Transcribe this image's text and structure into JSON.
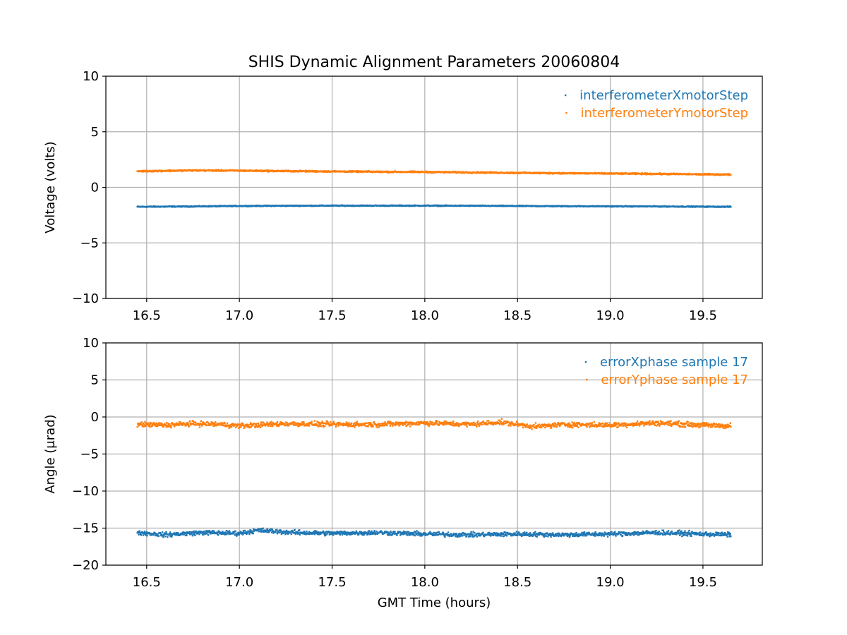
{
  "figure": {
    "title": "SHIS Dynamic Alignment Parameters 20060804"
  },
  "colors": {
    "series1": "#1f77b4",
    "series2": "#ff7f0e",
    "grid": "#b0b0b0"
  },
  "chart_data": [
    {
      "type": "scatter",
      "title": "SHIS Dynamic Alignment Parameters 20060804",
      "xlabel": "",
      "ylabel": "Voltage (volts)",
      "xlim": [
        16.28,
        19.82
      ],
      "ylim": [
        -10,
        10
      ],
      "xticks": [
        16.5,
        17.0,
        17.5,
        18.0,
        18.5,
        19.0,
        19.5
      ],
      "xtick_labels": [
        "16.5",
        "17.0",
        "17.5",
        "18.0",
        "18.5",
        "19.0",
        "19.5"
      ],
      "yticks": [
        -10,
        -5,
        0,
        5,
        10
      ],
      "ytick_labels": [
        "−10",
        "−5",
        "0",
        "5",
        "10"
      ],
      "grid": true,
      "legend": "top-right",
      "series": [
        {
          "name": "interferometerXmotorStep",
          "color": "#1f77b4",
          "x": [
            16.45,
            16.75,
            17.0,
            17.25,
            17.5,
            17.75,
            18.0,
            18.25,
            18.5,
            18.75,
            19.0,
            19.25,
            19.5,
            19.65
          ],
          "y": [
            -1.75,
            -1.72,
            -1.68,
            -1.66,
            -1.65,
            -1.65,
            -1.65,
            -1.66,
            -1.68,
            -1.7,
            -1.71,
            -1.72,
            -1.74,
            -1.75
          ],
          "spread": 0.12
        },
        {
          "name": "interferometerYmotorStep",
          "color": "#ff7f0e",
          "x": [
            16.45,
            16.75,
            17.0,
            17.25,
            17.5,
            17.75,
            18.0,
            18.25,
            18.5,
            18.75,
            19.0,
            19.25,
            19.5,
            19.65
          ],
          "y": [
            1.45,
            1.52,
            1.5,
            1.46,
            1.43,
            1.4,
            1.38,
            1.34,
            1.3,
            1.27,
            1.24,
            1.21,
            1.17,
            1.15
          ],
          "spread": 0.18
        }
      ]
    },
    {
      "type": "scatter",
      "title": "",
      "xlabel": "GMT Time (hours)",
      "ylabel": "Angle (μrad)",
      "xlim": [
        16.28,
        19.82
      ],
      "ylim": [
        -20,
        10
      ],
      "xticks": [
        16.5,
        17.0,
        17.5,
        18.0,
        18.5,
        19.0,
        19.5
      ],
      "xtick_labels": [
        "16.5",
        "17.0",
        "17.5",
        "18.0",
        "18.5",
        "19.0",
        "19.5"
      ],
      "yticks": [
        -20,
        -15,
        -10,
        -5,
        0,
        5,
        10
      ],
      "ytick_labels": [
        "−20",
        "−15",
        "−10",
        "−5",
        "0",
        "5",
        "10"
      ],
      "grid": true,
      "legend": "top-right",
      "series": [
        {
          "name": "errorXphase sample 17",
          "color": "#1f77b4",
          "x": [
            16.45,
            16.6,
            16.8,
            17.0,
            17.1,
            17.3,
            17.5,
            17.75,
            18.0,
            18.25,
            18.5,
            18.75,
            19.0,
            19.25,
            19.5,
            19.65
          ],
          "y": [
            -15.6,
            -15.9,
            -15.6,
            -15.7,
            -15.3,
            -15.6,
            -15.7,
            -15.6,
            -15.8,
            -15.9,
            -15.8,
            -15.9,
            -15.8,
            -15.6,
            -15.8,
            -15.9
          ],
          "spread": 0.9
        },
        {
          "name": "errorYphase sample 17",
          "color": "#ff7f0e",
          "x": [
            16.45,
            16.6,
            16.75,
            16.9,
            17.0,
            17.25,
            17.5,
            17.75,
            18.0,
            18.25,
            18.4,
            18.6,
            18.75,
            19.0,
            19.25,
            19.5,
            19.65
          ],
          "y": [
            -1.0,
            -1.1,
            -0.9,
            -1.0,
            -1.2,
            -0.9,
            -1.0,
            -1.0,
            -0.8,
            -1.0,
            -0.7,
            -1.3,
            -1.0,
            -1.1,
            -0.8,
            -1.1,
            -1.2
          ],
          "spread": 1.0
        }
      ]
    }
  ]
}
